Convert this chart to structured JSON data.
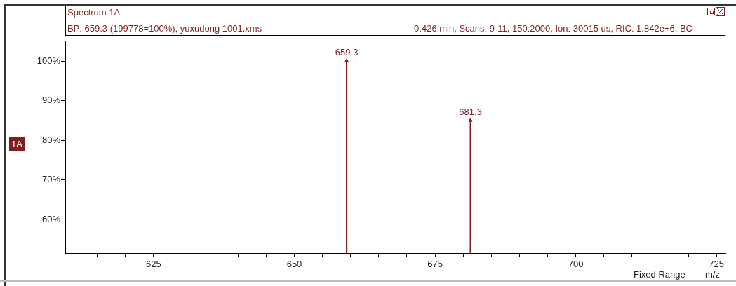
{
  "chart_data": {
    "type": "lollipop",
    "title": "Spectrum 1A",
    "subtitle": "BP: 659.3 (199778=100%), yuxudong 1001.xms",
    "xlabel": "m/z",
    "annotations": [
      "0.426 min, Scans: 9-11, 150:2000, Ion: 30015 us, RIC: 1.842e+6, BC",
      "1A",
      "Fixed Range",
      {
        "text": "659.3",
        "x": 659.3,
        "y": 100
      },
      {
        "text": "681.3",
        "x": 681.3,
        "y": 85
      }
    ],
    "x": [
      659.3,
      681.3
    ],
    "values": [
      100,
      85
    ],
    "color": "#7f1f1f",
    "marker": "triangle",
    "grid": false,
    "legend": false,
    "xlim": [
      609.3,
      726.6
    ],
    "xticks": [
      {
        "value": 610,
        "label": null
      },
      {
        "value": 615,
        "label": null
      },
      {
        "value": 620,
        "label": null
      },
      625,
      {
        "value": 630,
        "label": null
      },
      {
        "value": 635,
        "label": null
      },
      {
        "value": 640,
        "label": null
      },
      {
        "value": 645,
        "label": null
      },
      650,
      {
        "value": 655,
        "label": null
      },
      {
        "value": 660,
        "label": null
      },
      {
        "value": 665,
        "label": null
      },
      {
        "value": 670,
        "label": null
      },
      675,
      {
        "value": 680,
        "label": null
      },
      {
        "value": 685,
        "label": null
      },
      {
        "value": 690,
        "label": null
      },
      {
        "value": 695,
        "label": null
      },
      700,
      {
        "value": 705,
        "label": null
      },
      {
        "value": 710,
        "label": null
      },
      {
        "value": 715,
        "label": null
      },
      {
        "value": 720,
        "label": null
      },
      725
    ],
    "ylim": [
      51.5,
      105
    ],
    "yticks": [
      {
        "value": 60,
        "label": "60%"
      },
      {
        "value": 70,
        "label": "70%"
      },
      {
        "value": 80,
        "label": "80%"
      },
      {
        "value": 90,
        "label": "90%"
      },
      {
        "value": 100,
        "label": "100%"
      }
    ]
  }
}
